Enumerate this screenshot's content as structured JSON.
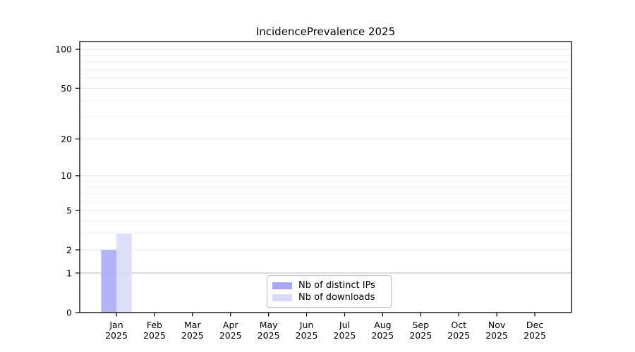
{
  "chart_data": {
    "type": "bar",
    "title": "IncidencePrevalence 2025",
    "categories": [
      "Jan 2025",
      "Feb 2025",
      "Mar 2025",
      "Apr 2025",
      "May 2025",
      "Jun 2025",
      "Jul 2025",
      "Aug 2025",
      "Sep 2025",
      "Oct 2025",
      "Nov 2025",
      "Dec 2025"
    ],
    "series": [
      {
        "name": "Nb of distinct IPs",
        "color": "#a8a8f7",
        "values": [
          2,
          0,
          0,
          0,
          0,
          0,
          0,
          0,
          0,
          0,
          0,
          0
        ]
      },
      {
        "name": "Nb of downloads",
        "color": "#d9d9f9",
        "values": [
          3,
          0,
          0,
          0,
          0,
          0,
          0,
          0,
          0,
          0,
          0,
          0
        ]
      }
    ],
    "y_axis": {
      "scale": "log1p",
      "ticks": [
        0,
        1,
        2,
        5,
        10,
        20,
        50,
        100
      ],
      "minor_gridlines": [
        3,
        4,
        6,
        7,
        8,
        9,
        30,
        40,
        60,
        70,
        80,
        90
      ],
      "reference_line": 1,
      "max": 100
    },
    "legend_position": "lower center",
    "grid": true
  },
  "colors": {
    "bar_distinct_ips": "#a8a8f7",
    "bar_downloads": "#d9d9f9",
    "grid_major": "#e4e4e4",
    "grid_minor": "#f1f1f1",
    "grid_reference": "#bbbbbb",
    "axis": "#000000",
    "text": "#000000"
  }
}
